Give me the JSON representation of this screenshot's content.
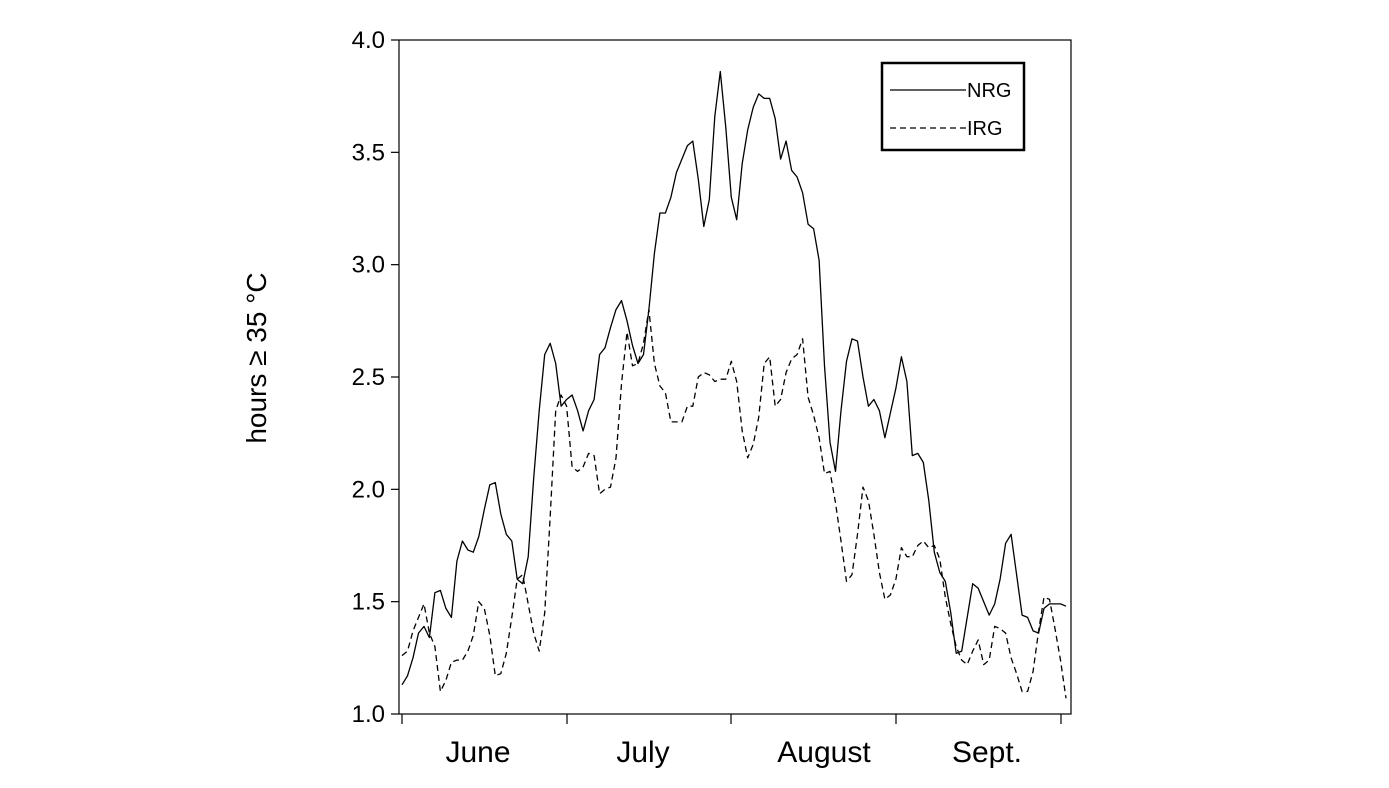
{
  "chart_data": {
    "type": "line",
    "title": "",
    "xlabel": "",
    "ylabel": "hours ≥ 35 °C",
    "ylim": [
      1.0,
      4.0
    ],
    "yticks": [
      "1.0",
      "1.5",
      "2.0",
      "2.5",
      "3.0",
      "3.5",
      "4.0"
    ],
    "months": [
      "June",
      "July",
      "August",
      "Sept."
    ],
    "grid": false,
    "legend_position": "top-right",
    "series": [
      {
        "name": "NRG",
        "style": "solid",
        "color": "#000000",
        "x": [
          0.0,
          1.0,
          2.0,
          3.0,
          4.0,
          5.0,
          6.0,
          7.0,
          8.0,
          9.0,
          10.0,
          11.0,
          12.0,
          13.0,
          14.0,
          15.0,
          16.0,
          17.0,
          18.0,
          19.0,
          20.0,
          21.0,
          22.0,
          23.0,
          24.0,
          25.0,
          26.0,
          27.0,
          28.0,
          29.0,
          30.0,
          31.0,
          32.0,
          33.0,
          34.0,
          35.0,
          36.0,
          37.0,
          38.0,
          39.0,
          40.0,
          41.0,
          42.0,
          43.0,
          44.0,
          45.0,
          46.0,
          47.0,
          48.0,
          49.0,
          50.0,
          51.0,
          52.0,
          53.0,
          54.0,
          55.0,
          56.0,
          57.0,
          58.0,
          59.0,
          60.0,
          61.0,
          62.0,
          63.0,
          64.0,
          65.0,
          66.0,
          67.0,
          68.0,
          69.0,
          70.0,
          71.0,
          72.0,
          73.0,
          74.0,
          75.0,
          76.0,
          77.0,
          78.0,
          79.0,
          80.0,
          81.0,
          82.0,
          83.0,
          84.0,
          85.0,
          86.0,
          87.0,
          88.0,
          89.0,
          90.0,
          91.0,
          92.0,
          93.0,
          94.0,
          95.0,
          96.0,
          97.0,
          98.0,
          99.0,
          100.0,
          101.0,
          102.0,
          103.0,
          104.0,
          105.0,
          106.0,
          107.0,
          108.0,
          109.0,
          110.0,
          111.0,
          112.0,
          113.0,
          114.0,
          115.0,
          116.0,
          117.0,
          118.0,
          119.0,
          120.0,
          121.0
        ],
        "y": [
          1.13,
          1.17,
          1.25,
          1.36,
          1.39,
          1.34,
          1.54,
          1.55,
          1.47,
          1.43,
          1.68,
          1.77,
          1.73,
          1.72,
          1.79,
          1.91,
          2.02,
          2.03,
          1.89,
          1.8,
          1.77,
          1.6,
          1.58,
          1.7,
          2.05,
          2.35,
          2.6,
          2.65,
          2.56,
          2.37,
          2.4,
          2.42,
          2.35,
          2.26,
          2.35,
          2.4,
          2.6,
          2.63,
          2.72,
          2.8,
          2.84,
          2.75,
          2.64,
          2.56,
          2.6,
          2.8,
          3.05,
          3.23,
          3.23,
          3.3,
          3.41,
          3.47,
          3.53,
          3.55,
          3.38,
          3.17,
          3.29,
          3.66,
          3.86,
          3.61,
          3.3,
          3.2,
          3.45,
          3.6,
          3.7,
          3.76,
          3.74,
          3.74,
          3.65,
          3.47,
          3.55,
          3.42,
          3.39,
          3.32,
          3.18,
          3.16,
          3.02,
          2.55,
          2.21,
          2.08,
          2.35,
          2.57,
          2.67,
          2.66,
          2.5,
          2.37,
          2.4,
          2.35,
          2.23,
          2.34,
          2.45,
          2.59,
          2.48,
          2.15,
          2.16,
          2.12,
          1.95,
          1.72,
          1.63,
          1.59,
          1.45,
          1.27,
          1.28,
          1.43,
          1.58,
          1.56,
          1.5,
          1.44,
          1.49,
          1.6,
          1.76,
          1.8,
          1.62,
          1.44,
          1.43,
          1.37,
          1.36,
          1.47,
          1.49,
          1.49,
          1.49,
          1.48
        ]
      },
      {
        "name": "IRG",
        "style": "dashed",
        "color": "#000000",
        "x": [
          0.0,
          1.0,
          2.0,
          3.0,
          4.0,
          5.0,
          6.0,
          7.0,
          8.0,
          9.0,
          10.0,
          11.0,
          12.0,
          13.0,
          14.0,
          15.0,
          16.0,
          17.0,
          18.0,
          19.0,
          20.0,
          21.0,
          22.0,
          23.0,
          24.0,
          25.0,
          26.0,
          27.0,
          28.0,
          29.0,
          30.0,
          31.0,
          32.0,
          33.0,
          34.0,
          35.0,
          36.0,
          37.0,
          38.0,
          39.0,
          40.0,
          41.0,
          42.0,
          43.0,
          44.0,
          45.0,
          46.0,
          47.0,
          48.0,
          49.0,
          50.0,
          51.0,
          52.0,
          53.0,
          54.0,
          55.0,
          56.0,
          57.0,
          58.0,
          59.0,
          60.0,
          61.0,
          62.0,
          63.0,
          64.0,
          65.0,
          66.0,
          67.0,
          68.0,
          69.0,
          70.0,
          71.0,
          72.0,
          73.0,
          74.0,
          75.0,
          76.0,
          77.0,
          78.0,
          79.0,
          80.0,
          81.0,
          82.0,
          83.0,
          84.0,
          85.0,
          86.0,
          87.0,
          88.0,
          89.0,
          90.0,
          91.0,
          92.0,
          93.0,
          94.0,
          95.0,
          96.0,
          97.0,
          98.0,
          99.0,
          100.0,
          101.0,
          102.0,
          103.0,
          104.0,
          105.0,
          106.0,
          107.0,
          108.0,
          109.0,
          110.0,
          111.0,
          112.0,
          113.0,
          114.0,
          115.0,
          116.0,
          117.0,
          118.0,
          119.0,
          120.0,
          121.0
        ],
        "y": [
          1.26,
          1.28,
          1.37,
          1.43,
          1.49,
          1.36,
          1.3,
          1.1,
          1.15,
          1.23,
          1.24,
          1.24,
          1.28,
          1.35,
          1.5,
          1.47,
          1.35,
          1.17,
          1.18,
          1.27,
          1.43,
          1.6,
          1.62,
          1.49,
          1.36,
          1.28,
          1.45,
          1.88,
          2.35,
          2.42,
          2.37,
          2.1,
          2.08,
          2.1,
          2.16,
          2.15,
          1.98,
          2.0,
          2.01,
          2.14,
          2.47,
          2.7,
          2.55,
          2.56,
          2.65,
          2.8,
          2.56,
          2.46,
          2.43,
          2.3,
          2.3,
          2.3,
          2.37,
          2.37,
          2.5,
          2.52,
          2.51,
          2.48,
          2.49,
          2.49,
          2.57,
          2.48,
          2.26,
          2.14,
          2.2,
          2.32,
          2.56,
          2.59,
          2.37,
          2.4,
          2.52,
          2.58,
          2.6,
          2.67,
          2.41,
          2.33,
          2.23,
          2.07,
          2.08,
          1.94,
          1.77,
          1.59,
          1.62,
          1.8,
          2.01,
          1.95,
          1.8,
          1.63,
          1.51,
          1.53,
          1.6,
          1.74,
          1.7,
          1.7,
          1.75,
          1.77,
          1.74,
          1.75,
          1.69,
          1.52,
          1.4,
          1.3,
          1.24,
          1.22,
          1.28,
          1.33,
          1.22,
          1.24,
          1.39,
          1.38,
          1.36,
          1.25,
          1.18,
          1.1,
          1.1,
          1.19,
          1.37,
          1.52,
          1.51,
          1.38,
          1.24,
          1.07
        ]
      }
    ]
  }
}
